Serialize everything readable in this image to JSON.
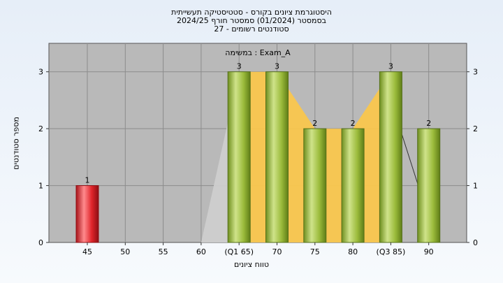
{
  "title_lines": [
    "היסטוגרמת ציונים בקורס - סטטיסטיקה תעשייתית",
    "בסמסטר  (01/2024)  סמסטר חורף 2024/25",
    "סטודנטים רשומים - 27"
  ],
  "colors": {
    "plot_bg": "#b9b9b9",
    "plot_bg_band": "#bfbfbf",
    "bar_green": "#9bbb3b",
    "bar_red": "#e0242a",
    "band_orange": "#f9c64d",
    "band_gray": "#cfcfcf"
  },
  "chart_data": {
    "type": "bar",
    "title": "היסטוגרמת ציונים בקורס - סטטיסטיקה תעשייתית",
    "xlabel": "טווח ציונים",
    "ylabel": "מספר סטודנטים",
    "legend": "במשימה : Exam_A",
    "ylim": [
      0,
      3.5
    ],
    "y_ticks": [
      0,
      1,
      2,
      3
    ],
    "categories": [
      "45",
      "50",
      "55",
      "60",
      "(Q1 65)",
      "70",
      "75",
      "80",
      "(Q3 85)",
      "90"
    ],
    "values": [
      1,
      0,
      0,
      0,
      3,
      3,
      2,
      2,
      3,
      2
    ],
    "data_labels": [
      "1",
      "",
      "",
      "",
      "3",
      "3",
      "2",
      "2",
      "3",
      "2"
    ],
    "highlight_category": "45",
    "grid": true,
    "secondary_y_axis": true
  }
}
